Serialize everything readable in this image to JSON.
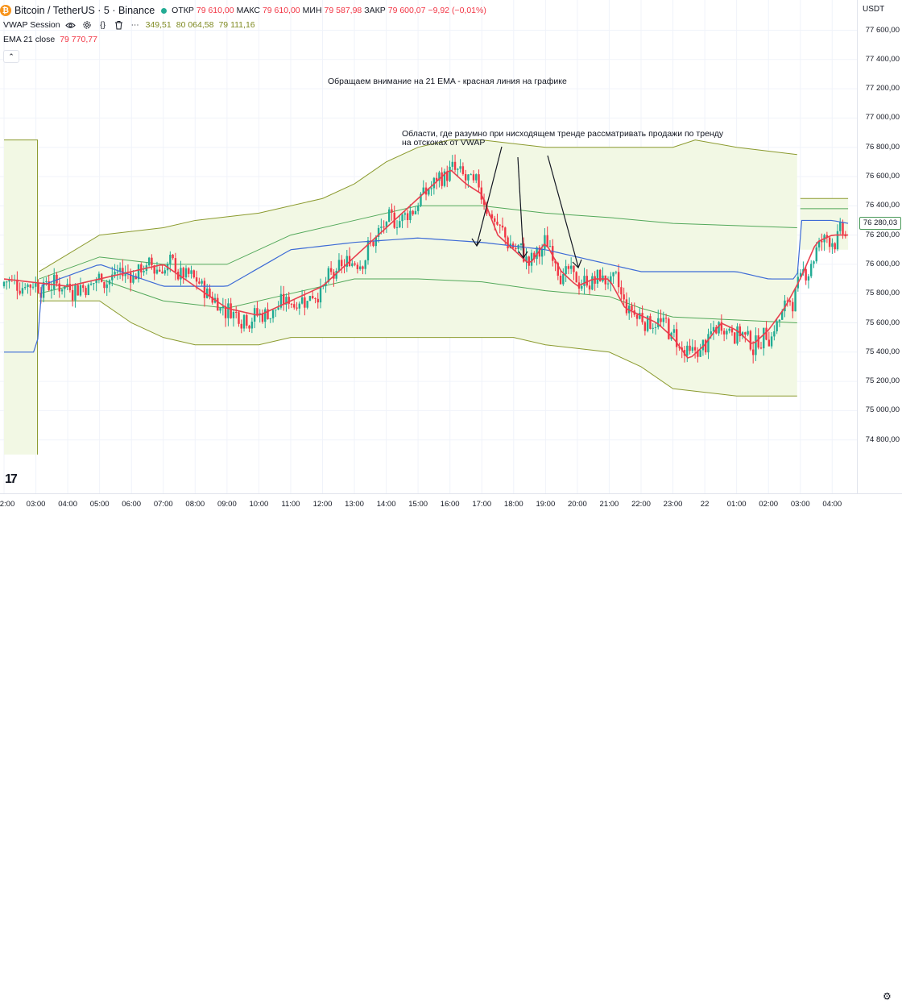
{
  "header": {
    "symbol_title": "Bitcoin / TetherUS · 5 · Binance",
    "ohlc": {
      "open_label": "ОТКР",
      "open": "79 610,00",
      "high_label": "МАКС",
      "high": "79 610,00",
      "low_label": "МИН",
      "low": "79 587,98",
      "close_label": "ЗАКР",
      "close": "79 600,07",
      "change": "−9,92 (−0,01%)"
    }
  },
  "indicators": {
    "vwap": {
      "name": "VWAP Session",
      "values": [
        "349,51",
        "80 064,58",
        "79 111,16"
      ]
    },
    "ema": {
      "name": "EMA 21 close",
      "value": "79 770,77"
    }
  },
  "annotations": {
    "main_note": "Обращаем внимание на 21 EMA - красная линия на графике",
    "area_note_line1": "Области, где разумно при нисходящем тренде рассматривать продажи по тренду",
    "area_note_line2": "на отскоках от VWAP"
  },
  "price_scale": {
    "currency": "USDT",
    "current_price": "76 280,03",
    "ticks": [
      "77 600,00",
      "77 400,00",
      "77 200,00",
      "77 000,00",
      "76 800,00",
      "76 600,00",
      "76 400,00",
      "76 200,00",
      "76 000,00",
      "75 800,00",
      "75 600,00",
      "75 400,00",
      "75 200,00",
      "75 000,00",
      "74 800,00"
    ]
  },
  "time_scale": {
    "ticks": [
      "2:00",
      "03:00",
      "04:00",
      "05:00",
      "06:00",
      "07:00",
      "08:00",
      "09:00",
      "10:00",
      "11:00",
      "12:00",
      "13:00",
      "14:00",
      "15:00",
      "16:00",
      "17:00",
      "18:00",
      "19:00",
      "20:00",
      "21:00",
      "22:00",
      "23:00",
      "22",
      "01:00",
      "02:00",
      "03:00",
      "04:00"
    ]
  },
  "icons": [
    "eye-icon",
    "gear-icon",
    "braces-icon",
    "trash-icon",
    "more-icon",
    "chevron-up-icon",
    "settings-icon"
  ],
  "colors": {
    "up": "#22ab94",
    "down": "#f23645",
    "ema": "#e8404f",
    "vwap": "#3d6bd6",
    "band1": "#52a85a",
    "band2": "#8b9a2e",
    "band_fill": "#f2f8e4"
  },
  "chart_data": {
    "type": "candlestick",
    "series": [
      {
        "name": "VWAP Session"
      },
      {
        "name": "EMA 21 close"
      }
    ],
    "ylim": [
      74750,
      77700
    ],
    "x_ticks": [
      "2:00",
      "03:00",
      "04:00",
      "05:00",
      "06:00",
      "07:00",
      "08:00",
      "09:00",
      "10:00",
      "11:00",
      "12:00",
      "13:00",
      "14:00",
      "15:00",
      "16:00",
      "17:00",
      "18:00",
      "19:00",
      "20:00",
      "21:00",
      "22:00",
      "23:00",
      "22",
      "01:00",
      "02:00",
      "03:00",
      "04:00"
    ],
    "ema_anchor": [
      [
        0,
        75900
      ],
      [
        2,
        75850
      ],
      [
        4,
        75950
      ],
      [
        5,
        76000
      ],
      [
        6,
        75850
      ],
      [
        7,
        75700
      ],
      [
        8,
        75650
      ],
      [
        9,
        75750
      ],
      [
        10,
        75850
      ],
      [
        11,
        76050
      ],
      [
        12,
        76250
      ],
      [
        12.5,
        76350
      ],
      [
        13,
        76450
      ],
      [
        13.5,
        76550
      ],
      [
        14,
        76650
      ],
      [
        14.5,
        76550
      ],
      [
        15,
        76480
      ],
      [
        15.5,
        76200
      ],
      [
        16,
        76100
      ],
      [
        16.5,
        76000
      ],
      [
        17,
        76150
      ],
      [
        17.5,
        75950
      ],
      [
        18,
        75850
      ],
      [
        18.5,
        75900
      ],
      [
        19,
        75900
      ],
      [
        19.5,
        75700
      ],
      [
        20,
        75650
      ],
      [
        20.5,
        75600
      ],
      [
        21,
        75500
      ],
      [
        21.5,
        75350
      ],
      [
        22,
        75450
      ],
      [
        22.5,
        75600
      ],
      [
        23,
        75550
      ],
      [
        23.5,
        75450
      ],
      [
        24,
        75550
      ],
      [
        24.5,
        75700
      ],
      [
        25,
        75900
      ],
      [
        25.5,
        76150
      ],
      [
        26,
        76200
      ],
      [
        26.5,
        76200
      ]
    ],
    "vwap_anchor": [
      [
        0,
        75400
      ],
      [
        1.05,
        75400
      ],
      [
        1.1,
        75850
      ],
      [
        3,
        76000
      ],
      [
        5,
        75850
      ],
      [
        7,
        75850
      ],
      [
        9,
        76100
      ],
      [
        11,
        76150
      ],
      [
        13,
        76180
      ],
      [
        15,
        76150
      ],
      [
        17,
        76100
      ],
      [
        18,
        76050
      ],
      [
        19,
        76000
      ],
      [
        20,
        75950
      ],
      [
        21,
        75950
      ],
      [
        22,
        75950
      ],
      [
        23,
        75950
      ],
      [
        24,
        75900
      ],
      [
        24.9,
        75900
      ],
      [
        25,
        76300
      ],
      [
        26,
        76300
      ],
      [
        26.5,
        76280
      ]
    ]
  }
}
